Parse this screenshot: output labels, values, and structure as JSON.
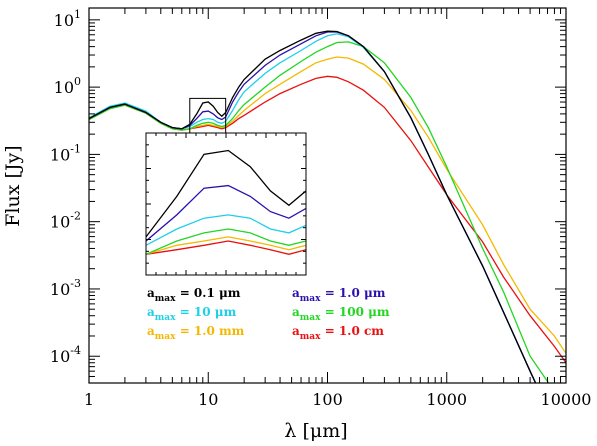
{
  "chart_data": {
    "type": "line",
    "xlabel": "λ [μm]",
    "ylabel": "Flux [Jy]",
    "x_scale": "log",
    "y_scale": "log",
    "xlim": [
      1,
      10000
    ],
    "ylim": [
      4e-05,
      15
    ],
    "grid": false,
    "legend_placement": "bottom-center",
    "x_ticks": [
      {
        "v": 1,
        "label": "1"
      },
      {
        "v": 10,
        "label": "10"
      },
      {
        "v": 100,
        "label": "100"
      },
      {
        "v": 1000,
        "label": "1000"
      },
      {
        "v": 10000,
        "label": "10000"
      }
    ],
    "y_ticks": [
      {
        "v": 0.0001,
        "base": "10",
        "exp": "-4"
      },
      {
        "v": 0.001,
        "base": "10",
        "exp": "-3"
      },
      {
        "v": 0.01,
        "base": "10",
        "exp": "-2"
      },
      {
        "v": 0.1,
        "base": "10",
        "exp": "-1"
      },
      {
        "v": 1,
        "base": "10",
        "exp": "0"
      },
      {
        "v": 10,
        "base": "10",
        "exp": "1"
      }
    ],
    "series": [
      {
        "name": "a_max = 0.1 μm",
        "legend_sub": "max",
        "legend_rest": " = 0.1 μm",
        "color": "#000000",
        "points": [
          [
            1,
            0.34
          ],
          [
            1.5,
            0.5
          ],
          [
            2,
            0.56
          ],
          [
            3,
            0.42
          ],
          [
            4,
            0.3
          ],
          [
            5,
            0.25
          ],
          [
            6,
            0.24
          ],
          [
            7,
            0.28
          ],
          [
            8,
            0.4
          ],
          [
            9,
            0.58
          ],
          [
            10,
            0.6
          ],
          [
            11,
            0.52
          ],
          [
            12,
            0.42
          ],
          [
            13,
            0.37
          ],
          [
            14,
            0.42
          ],
          [
            16,
            0.7
          ],
          [
            18,
            1.0
          ],
          [
            20,
            1.3
          ],
          [
            30,
            2.6
          ],
          [
            40,
            3.5
          ],
          [
            60,
            5.0
          ],
          [
            80,
            6.3
          ],
          [
            100,
            6.8
          ],
          [
            120,
            6.7
          ],
          [
            150,
            5.8
          ],
          [
            200,
            4.0
          ],
          [
            300,
            1.7
          ],
          [
            500,
            0.35
          ],
          [
            700,
            0.1
          ],
          [
            1000,
            0.025
          ],
          [
            2000,
            0.0022
          ],
          [
            3000,
            0.00045
          ],
          [
            5000,
            6e-05
          ],
          [
            6000,
            3e-05
          ]
        ]
      },
      {
        "name": "a_max = 1.0 μm",
        "legend_sub": "max",
        "legend_rest": " = 1.0 μm",
        "color": "#2b10ad",
        "points": [
          [
            1,
            0.34
          ],
          [
            1.5,
            0.5
          ],
          [
            2,
            0.56
          ],
          [
            3,
            0.42
          ],
          [
            4,
            0.3
          ],
          [
            5,
            0.25
          ],
          [
            6,
            0.24
          ],
          [
            7,
            0.27
          ],
          [
            8,
            0.34
          ],
          [
            9,
            0.43
          ],
          [
            10,
            0.44
          ],
          [
            11,
            0.4
          ],
          [
            12,
            0.35
          ],
          [
            13,
            0.33
          ],
          [
            14,
            0.36
          ],
          [
            16,
            0.6
          ],
          [
            18,
            0.85
          ],
          [
            20,
            1.1
          ],
          [
            30,
            2.1
          ],
          [
            40,
            3.0
          ],
          [
            60,
            4.4
          ],
          [
            80,
            5.8
          ],
          [
            100,
            6.6
          ],
          [
            120,
            6.6
          ],
          [
            150,
            5.8
          ],
          [
            200,
            4.0
          ],
          [
            300,
            1.7
          ],
          [
            500,
            0.35
          ],
          [
            700,
            0.1
          ],
          [
            1000,
            0.025
          ],
          [
            2000,
            0.0022
          ],
          [
            3000,
            0.00045
          ],
          [
            5000,
            6e-05
          ],
          [
            6000,
            3e-05
          ]
        ]
      },
      {
        "name": "a_max = 10 μm",
        "legend_sub": "max",
        "legend_rest": " = 10 μm",
        "color": "#1ecfe8",
        "points": [
          [
            1,
            0.35
          ],
          [
            1.5,
            0.52
          ],
          [
            2,
            0.58
          ],
          [
            3,
            0.44
          ],
          [
            4,
            0.3
          ],
          [
            5,
            0.25
          ],
          [
            6,
            0.24
          ],
          [
            7,
            0.26
          ],
          [
            8,
            0.3
          ],
          [
            9,
            0.33
          ],
          [
            10,
            0.34
          ],
          [
            11,
            0.33
          ],
          [
            12,
            0.3
          ],
          [
            13,
            0.29
          ],
          [
            14,
            0.31
          ],
          [
            16,
            0.45
          ],
          [
            18,
            0.65
          ],
          [
            20,
            0.85
          ],
          [
            30,
            1.6
          ],
          [
            40,
            2.3
          ],
          [
            60,
            3.5
          ],
          [
            80,
            4.8
          ],
          [
            100,
            5.8
          ],
          [
            120,
            6.2
          ],
          [
            150,
            5.6
          ],
          [
            200,
            3.9
          ],
          [
            300,
            1.7
          ],
          [
            500,
            0.35
          ],
          [
            700,
            0.1
          ],
          [
            1000,
            0.025
          ],
          [
            2000,
            0.0022
          ],
          [
            3000,
            0.00045
          ],
          [
            5000,
            6e-05
          ],
          [
            6000,
            3e-05
          ]
        ]
      },
      {
        "name": "a_max = 100 μm",
        "legend_sub": "max",
        "legend_rest": " = 100 μm",
        "color": "#22d622",
        "points": [
          [
            1,
            0.33
          ],
          [
            1.5,
            0.48
          ],
          [
            2,
            0.54
          ],
          [
            3,
            0.41
          ],
          [
            4,
            0.29
          ],
          [
            5,
            0.24
          ],
          [
            6,
            0.23
          ],
          [
            7,
            0.24
          ],
          [
            8,
            0.27
          ],
          [
            9,
            0.29
          ],
          [
            10,
            0.3
          ],
          [
            11,
            0.29
          ],
          [
            12,
            0.27
          ],
          [
            13,
            0.26
          ],
          [
            14,
            0.27
          ],
          [
            16,
            0.34
          ],
          [
            18,
            0.45
          ],
          [
            20,
            0.55
          ],
          [
            30,
            1.0
          ],
          [
            40,
            1.5
          ],
          [
            60,
            2.4
          ],
          [
            80,
            3.3
          ],
          [
            100,
            4.0
          ],
          [
            120,
            4.6
          ],
          [
            150,
            4.7
          ],
          [
            200,
            4.0
          ],
          [
            300,
            2.3
          ],
          [
            500,
            0.7
          ],
          [
            700,
            0.25
          ],
          [
            1000,
            0.065
          ],
          [
            2000,
            0.004
          ],
          [
            3000,
            0.0009
          ],
          [
            5000,
            0.0001
          ],
          [
            8000,
            3e-05
          ]
        ]
      },
      {
        "name": "a_max = 1.0 mm",
        "legend_sub": "max",
        "legend_rest": " = 1.0 mm",
        "color": "#f5b800",
        "points": [
          [
            1,
            0.33
          ],
          [
            1.5,
            0.48
          ],
          [
            2,
            0.54
          ],
          [
            3,
            0.41
          ],
          [
            4,
            0.29
          ],
          [
            5,
            0.24
          ],
          [
            6,
            0.23
          ],
          [
            7,
            0.24
          ],
          [
            8,
            0.26
          ],
          [
            9,
            0.27
          ],
          [
            10,
            0.28
          ],
          [
            11,
            0.27
          ],
          [
            12,
            0.26
          ],
          [
            13,
            0.25
          ],
          [
            14,
            0.26
          ],
          [
            16,
            0.31
          ],
          [
            18,
            0.38
          ],
          [
            20,
            0.45
          ],
          [
            30,
            0.8
          ],
          [
            40,
            1.1
          ],
          [
            60,
            1.7
          ],
          [
            80,
            2.3
          ],
          [
            100,
            2.6
          ],
          [
            120,
            2.8
          ],
          [
            150,
            2.7
          ],
          [
            200,
            2.2
          ],
          [
            300,
            1.3
          ],
          [
            500,
            0.45
          ],
          [
            700,
            0.18
          ],
          [
            1000,
            0.06
          ],
          [
            2000,
            0.009
          ],
          [
            3000,
            0.0023
          ],
          [
            5000,
            0.0005
          ],
          [
            8000,
            0.0002
          ],
          [
            10000,
            0.00011
          ]
        ]
      },
      {
        "name": "a_max = 1.0 cm",
        "legend_sub": "max",
        "legend_rest": " = 1.0 cm",
        "color": "#e81010",
        "points": [
          [
            1,
            0.33
          ],
          [
            1.5,
            0.48
          ],
          [
            2,
            0.54
          ],
          [
            3,
            0.41
          ],
          [
            4,
            0.29
          ],
          [
            5,
            0.24
          ],
          [
            6,
            0.23
          ],
          [
            7,
            0.24
          ],
          [
            8,
            0.25
          ],
          [
            9,
            0.26
          ],
          [
            10,
            0.27
          ],
          [
            11,
            0.26
          ],
          [
            12,
            0.25
          ],
          [
            13,
            0.24
          ],
          [
            14,
            0.25
          ],
          [
            16,
            0.29
          ],
          [
            18,
            0.34
          ],
          [
            20,
            0.38
          ],
          [
            30,
            0.6
          ],
          [
            40,
            0.8
          ],
          [
            60,
            1.1
          ],
          [
            80,
            1.35
          ],
          [
            100,
            1.45
          ],
          [
            120,
            1.4
          ],
          [
            150,
            1.2
          ],
          [
            200,
            0.9
          ],
          [
            300,
            0.5
          ],
          [
            500,
            0.16
          ],
          [
            700,
            0.065
          ],
          [
            1000,
            0.025
          ],
          [
            2000,
            0.005
          ],
          [
            3000,
            0.0015
          ],
          [
            5000,
            0.0004
          ],
          [
            8000,
            0.00014
          ],
          [
            10000,
            8e-05
          ]
        ]
      }
    ],
    "inset": {
      "xlim": [
        7,
        14
      ],
      "ylim": [
        0.2,
        0.7
      ],
      "source_box_x": [
        7,
        14
      ],
      "source_box_y": [
        0.2,
        0.68
      ]
    }
  }
}
